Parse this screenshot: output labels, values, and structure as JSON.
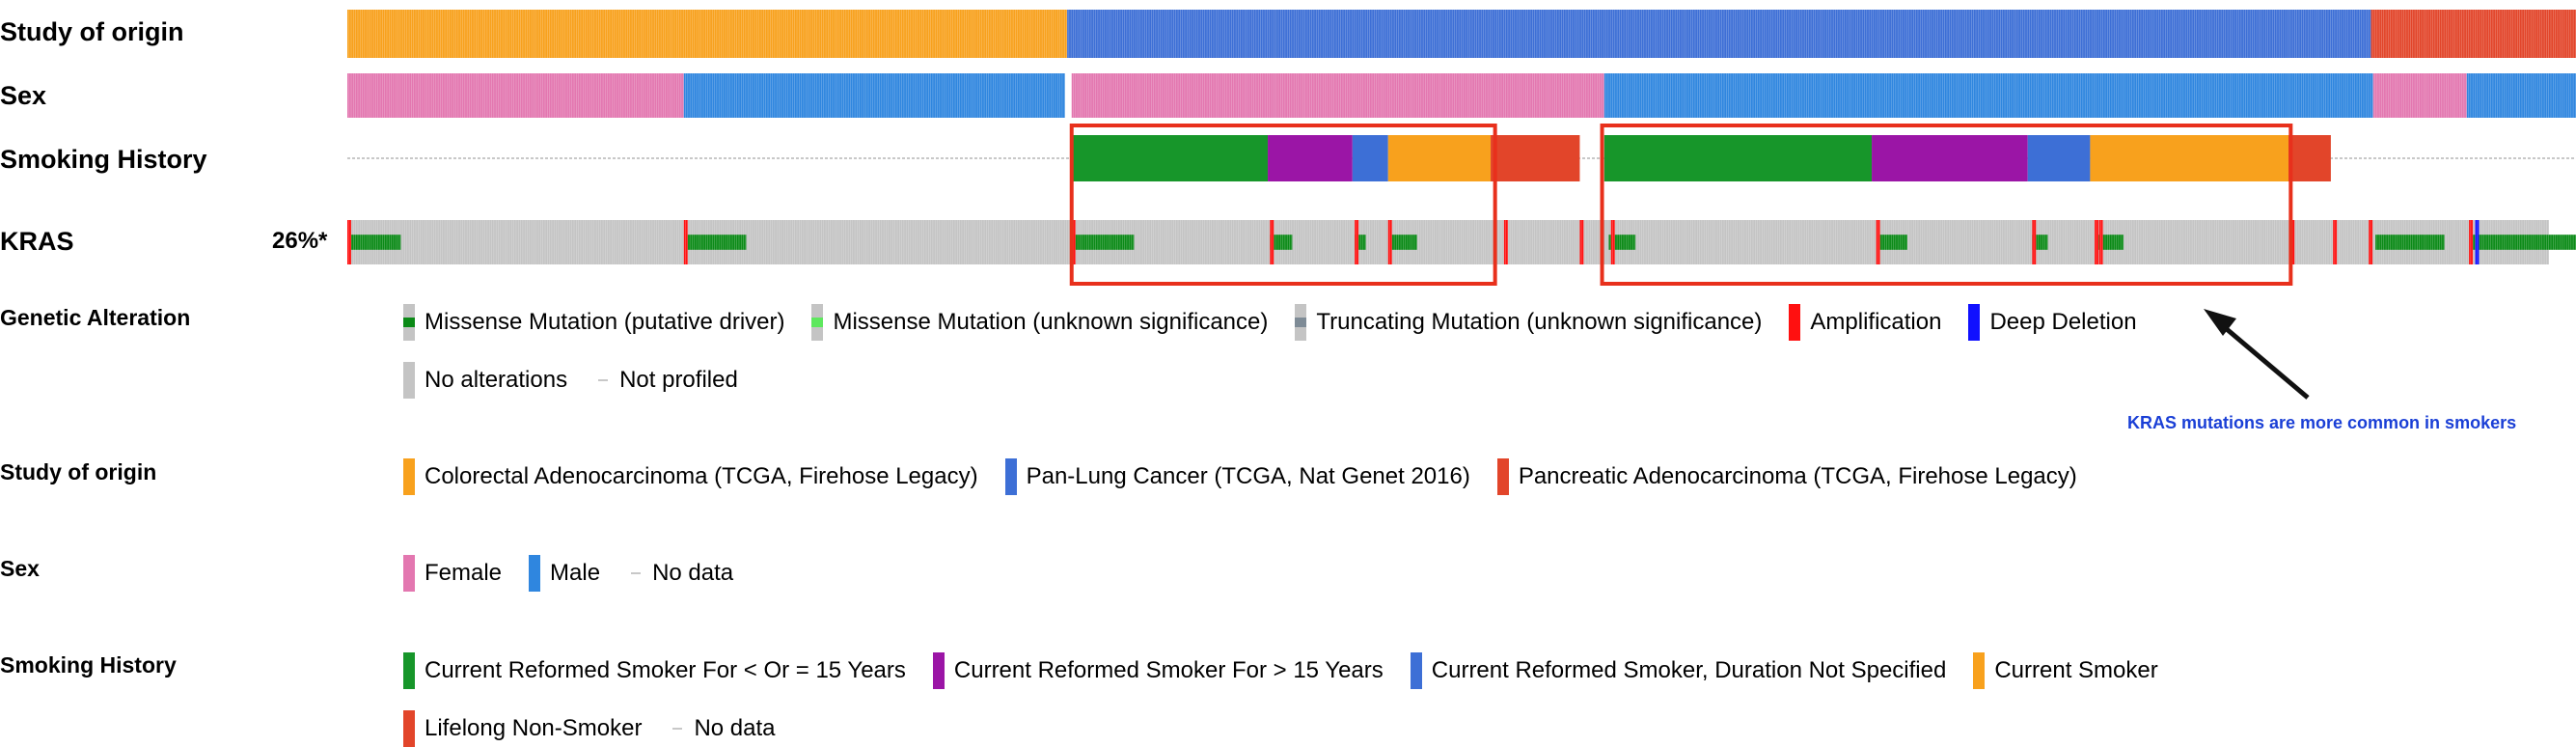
{
  "colors": {
    "colorectal": "#f8a11d",
    "pan_lung": "#3d6fd6",
    "pancreatic": "#e2452a",
    "female": "#e377b0",
    "male": "#2f86df",
    "smoker_le15": "#17962a",
    "smoker_gt15": "#9b15a6",
    "smoker_unspecified": "#3d6fd6",
    "current_smoker": "#f8a11d",
    "lifelong_non_smoker": "#e2452a",
    "missense_driver": "#0b8a17",
    "missense_unknown": "#5ee85e",
    "truncating_unknown": "#7e8b96",
    "amplification": "#ff1010",
    "deep_deletion": "#1010ff",
    "no_alteration": "#c4c4c4",
    "not_profiled": "#c8c8c8",
    "highlight": "#e8301c",
    "arrow": "#111111",
    "annotation": "#1a3fd6"
  },
  "tracks": {
    "study": "Study of origin",
    "sex": "Sex",
    "smoking": "Smoking History",
    "kras": "KRAS",
    "kras_pct": "26%*"
  },
  "chart_data": {
    "type": "heatmap",
    "title": "",
    "samples_total": 1000,
    "study_of_origin": [
      {
        "value": "Colorectal Adenocarcinoma (TCGA, Firehose Legacy)",
        "from": 0,
        "to": 323
      },
      {
        "value": "Pan-Lung Cancer (TCGA, Nat Genet 2016)",
        "from": 323,
        "to": 908
      },
      {
        "value": "Pancreatic Adenocarcinoma (TCGA, Firehose Legacy)",
        "from": 908,
        "to": 1000
      }
    ],
    "sex": [
      {
        "value": "Female",
        "from": 0,
        "to": 151
      },
      {
        "value": "Male",
        "from": 151,
        "to": 322
      },
      {
        "value": "Female",
        "from": 325,
        "to": 564
      },
      {
        "value": "Male",
        "from": 564,
        "to": 909
      },
      {
        "value": "Female",
        "from": 909,
        "to": 951
      },
      {
        "value": "Male",
        "from": 951,
        "to": 1000
      }
    ],
    "smoking_history": [
      {
        "value": "Current Reformed Smoker For < Or = 15 Years",
        "from": 325,
        "to": 413
      },
      {
        "value": "Current Reformed Smoker For > 15 Years",
        "from": 413,
        "to": 451
      },
      {
        "value": "Current Reformed Smoker, Duration Not Specified",
        "from": 451,
        "to": 467
      },
      {
        "value": "Current Smoker",
        "from": 467,
        "to": 513
      },
      {
        "value": "Lifelong Non-Smoker",
        "from": 513,
        "to": 553
      },
      {
        "value": "Current Reformed Smoker For < Or = 15 Years",
        "from": 564,
        "to": 684
      },
      {
        "value": "Current Reformed Smoker For > 15 Years",
        "from": 684,
        "to": 754
      },
      {
        "value": "Current Reformed Smoker, Duration Not Specified",
        "from": 754,
        "to": 782
      },
      {
        "value": "Current Smoker",
        "from": 782,
        "to": 871
      },
      {
        "value": "Lifelong Non-Smoker",
        "from": 871,
        "to": 890
      }
    ],
    "kras_alterations": {
      "altered_percent": "26%*",
      "missense_driver": [
        [
          0,
          24
        ],
        [
          152,
          179
        ],
        [
          326,
          353
        ],
        [
          414,
          424
        ],
        [
          452,
          457
        ],
        [
          468,
          480
        ],
        [
          566,
          578
        ],
        [
          687,
          700
        ],
        [
          756,
          763
        ],
        [
          785,
          797
        ],
        [
          910,
          941
        ],
        [
          953,
          1000
        ]
      ],
      "amplification": [
        0,
        151,
        325,
        414,
        452,
        467,
        519,
        553,
        567,
        686,
        756,
        784,
        786,
        872,
        891,
        907,
        952
      ],
      "deep_deletion": [
        953
      ],
      "no_alterations_rest": true
    },
    "highlight_boxes": [
      {
        "from": 325,
        "to": 515
      },
      {
        "from": 563,
        "to": 872
      }
    ]
  },
  "legend": {
    "genetic_alteration": {
      "title": "Genetic Alteration",
      "items": [
        "Missense Mutation (putative driver)",
        "Missense Mutation (unknown significance)",
        "Truncating Mutation (unknown significance)",
        "Amplification",
        "Deep Deletion"
      ],
      "items2": [
        "No alterations",
        "Not profiled"
      ]
    },
    "study": {
      "title": "Study of origin",
      "items": [
        "Colorectal Adenocarcinoma (TCGA, Firehose Legacy)",
        "Pan-Lung Cancer (TCGA, Nat Genet 2016)",
        "Pancreatic Adenocarcinoma (TCGA, Firehose Legacy)"
      ]
    },
    "sex": {
      "title": "Sex",
      "items": [
        "Female",
        "Male",
        "No data"
      ]
    },
    "smoking": {
      "title": "Smoking History",
      "items": [
        "Current Reformed Smoker For < Or = 15 Years",
        "Current Reformed Smoker For > 15 Years",
        "Current Reformed Smoker, Duration Not Specified",
        "Current Smoker"
      ],
      "items2": [
        "Lifelong Non-Smoker",
        "No data"
      ]
    }
  },
  "annotation": "KRAS mutations are more common in smokers"
}
